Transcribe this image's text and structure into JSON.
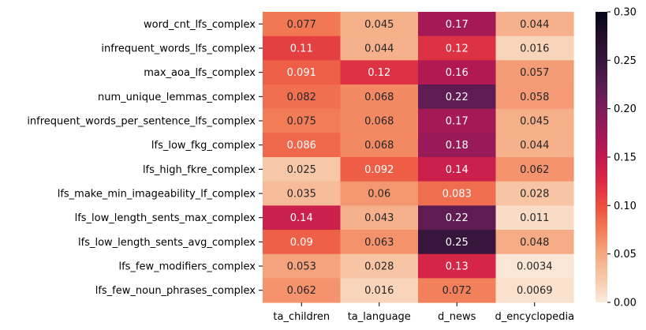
{
  "chart_data": {
    "type": "heatmap",
    "title": "",
    "xlabel": "",
    "ylabel": "",
    "columns": [
      "ta_children",
      "ta_language",
      "d_news",
      "d_encyclopedia"
    ],
    "rows": [
      "word_cnt_lfs_complex",
      "infrequent_words_lfs_complex",
      "max_aoa_lfs_complex",
      "num_unique_lemmas_complex",
      "infrequent_words_per_sentence_lfs_complex",
      "lfs_low_fkg_complex",
      "lfs_high_fkre_complex",
      "lfs_make_min_imageability_lf_complex",
      "lfs_low_length_sents_max_complex",
      "lfs_low_length_sents_avg_complex",
      "lfs_few_modifiers_complex",
      "lfs_few_noun_phrases_complex"
    ],
    "values": [
      [
        0.077,
        0.045,
        0.17,
        0.044
      ],
      [
        0.11,
        0.044,
        0.12,
        0.016
      ],
      [
        0.091,
        0.12,
        0.16,
        0.057
      ],
      [
        0.082,
        0.068,
        0.22,
        0.058
      ],
      [
        0.075,
        0.068,
        0.17,
        0.045
      ],
      [
        0.086,
        0.068,
        0.18,
        0.044
      ],
      [
        0.025,
        0.092,
        0.14,
        0.062
      ],
      [
        0.035,
        0.06,
        0.083,
        0.028
      ],
      [
        0.14,
        0.043,
        0.22,
        0.011
      ],
      [
        0.09,
        0.063,
        0.25,
        0.048
      ],
      [
        0.053,
        0.028,
        0.13,
        0.0034
      ],
      [
        0.062,
        0.016,
        0.072,
        0.0069
      ]
    ],
    "labels": [
      [
        "0.077",
        "0.045",
        "0.17",
        "0.044"
      ],
      [
        "0.11",
        "0.044",
        "0.12",
        "0.016"
      ],
      [
        "0.091",
        "0.12",
        "0.16",
        "0.057"
      ],
      [
        "0.082",
        "0.068",
        "0.22",
        "0.058"
      ],
      [
        "0.075",
        "0.068",
        "0.17",
        "0.045"
      ],
      [
        "0.086",
        "0.068",
        "0.18",
        "0.044"
      ],
      [
        "0.025",
        "0.092",
        "0.14",
        "0.062"
      ],
      [
        "0.035",
        "0.06",
        "0.083",
        "0.028"
      ],
      [
        "0.14",
        "0.043",
        "0.22",
        "0.011"
      ],
      [
        "0.09",
        "0.063",
        "0.25",
        "0.048"
      ],
      [
        "0.053",
        "0.028",
        "0.13",
        "0.0034"
      ],
      [
        "0.062",
        "0.016",
        "0.072",
        "0.0069"
      ]
    ],
    "colorbar": {
      "min": 0,
      "max": 0.3,
      "ticks": [
        0.0,
        0.05,
        0.1,
        0.15,
        0.2,
        0.25,
        0.3
      ],
      "tick_labels": [
        "0.00",
        "0.05",
        "0.10",
        "0.15",
        "0.20",
        "0.25",
        "0.30"
      ],
      "colormap": "rocket_r"
    },
    "grid": false
  }
}
